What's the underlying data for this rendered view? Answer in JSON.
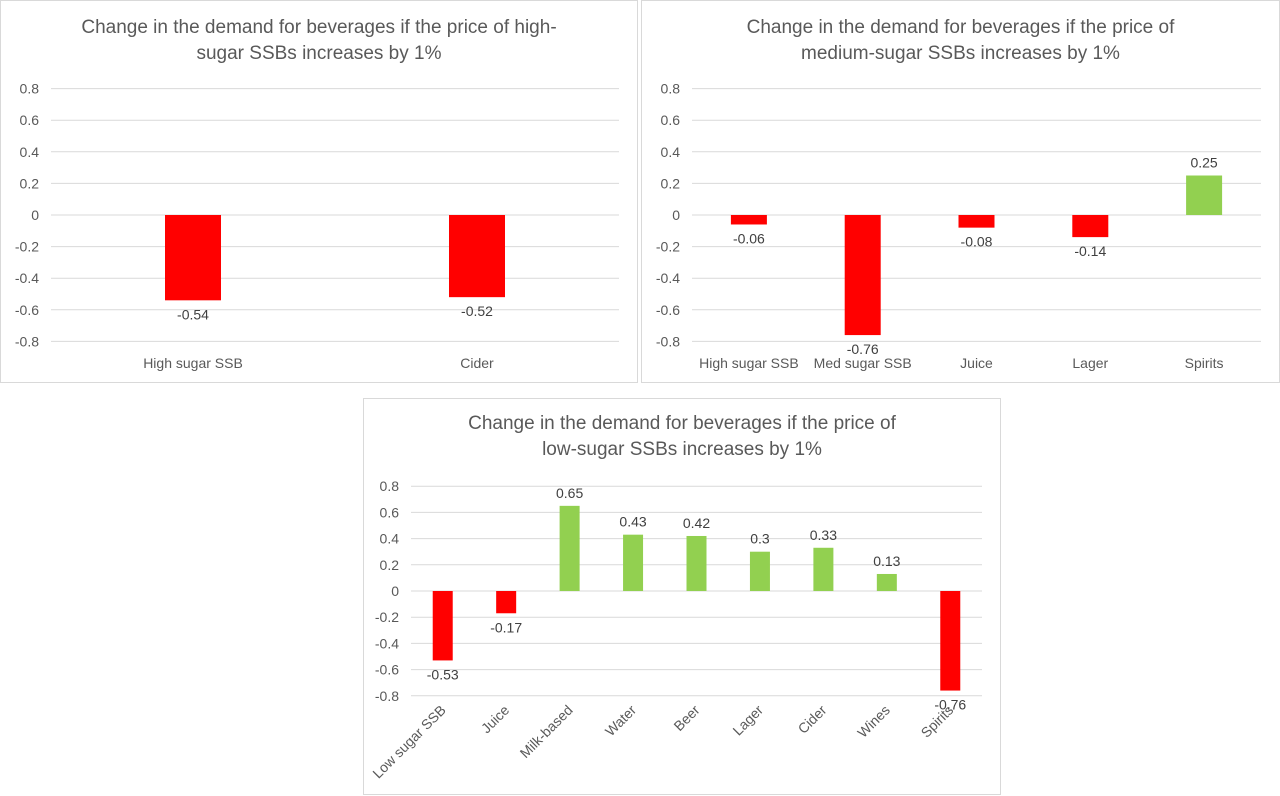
{
  "chart_data": [
    {
      "type": "bar",
      "title": "Change in the demand for beverages if the price of high-\nsugar SSBs increases by 1%",
      "categories": [
        "High sugar SSB",
        "Cider"
      ],
      "values": [
        -0.54,
        -0.52
      ],
      "value_labels": [
        "-0.54",
        "-0.52"
      ],
      "y_ticks": [
        "0.8",
        "0.6",
        "0.4",
        "0.2",
        "0",
        "-0.2",
        "-0.4",
        "-0.6",
        "-0.8"
      ],
      "ylim": [
        -0.8,
        0.8
      ],
      "grid": true,
      "xlabel": "",
      "ylabel": ""
    },
    {
      "type": "bar",
      "title": "Change in the demand for beverages if the price of\nmedium-sugar SSBs increases by 1%",
      "categories": [
        "High sugar SSB",
        "Med sugar SSB",
        "Juice",
        "Lager",
        "Spirits"
      ],
      "values": [
        -0.06,
        -0.76,
        -0.08,
        -0.14,
        0.25
      ],
      "value_labels": [
        "-0.06",
        "-0.76",
        "-0.08",
        "-0.14",
        "0.25"
      ],
      "y_ticks": [
        "0.8",
        "0.6",
        "0.4",
        "0.2",
        "0",
        "-0.2",
        "-0.4",
        "-0.6",
        "-0.8"
      ],
      "ylim": [
        -0.8,
        0.8
      ],
      "grid": true,
      "xlabel": "",
      "ylabel": ""
    },
    {
      "type": "bar",
      "title": "Change in the demand for beverages if the price of\nlow-sugar SSBs increases by 1%",
      "categories": [
        "Low sugar SSB",
        "Juice",
        "Milk-based",
        "Water",
        "Beer",
        "Lager",
        "Cider",
        "Wines",
        "Spirits"
      ],
      "values": [
        -0.53,
        -0.17,
        0.65,
        0.43,
        0.42,
        0.3,
        0.33,
        0.13,
        -0.76
      ],
      "value_labels": [
        "-0.53",
        "-0.17",
        "0.65",
        "0.43",
        "0.42",
        "0.3",
        "0.33",
        "0.13",
        "-0.76"
      ],
      "y_ticks": [
        "0.8",
        "0.6",
        "0.4",
        "0.2",
        "0",
        "-0.2",
        "-0.4",
        "-0.6",
        "-0.8"
      ],
      "ylim": [
        -0.8,
        0.8
      ],
      "grid": true,
      "xlabel": "",
      "ylabel": "",
      "rotated_category_labels": true
    }
  ],
  "colors": {
    "negative": "#ff0000",
    "positive": "#92d050",
    "gridline": "#d9d9d9",
    "text": "#595959",
    "label": "#404040"
  }
}
